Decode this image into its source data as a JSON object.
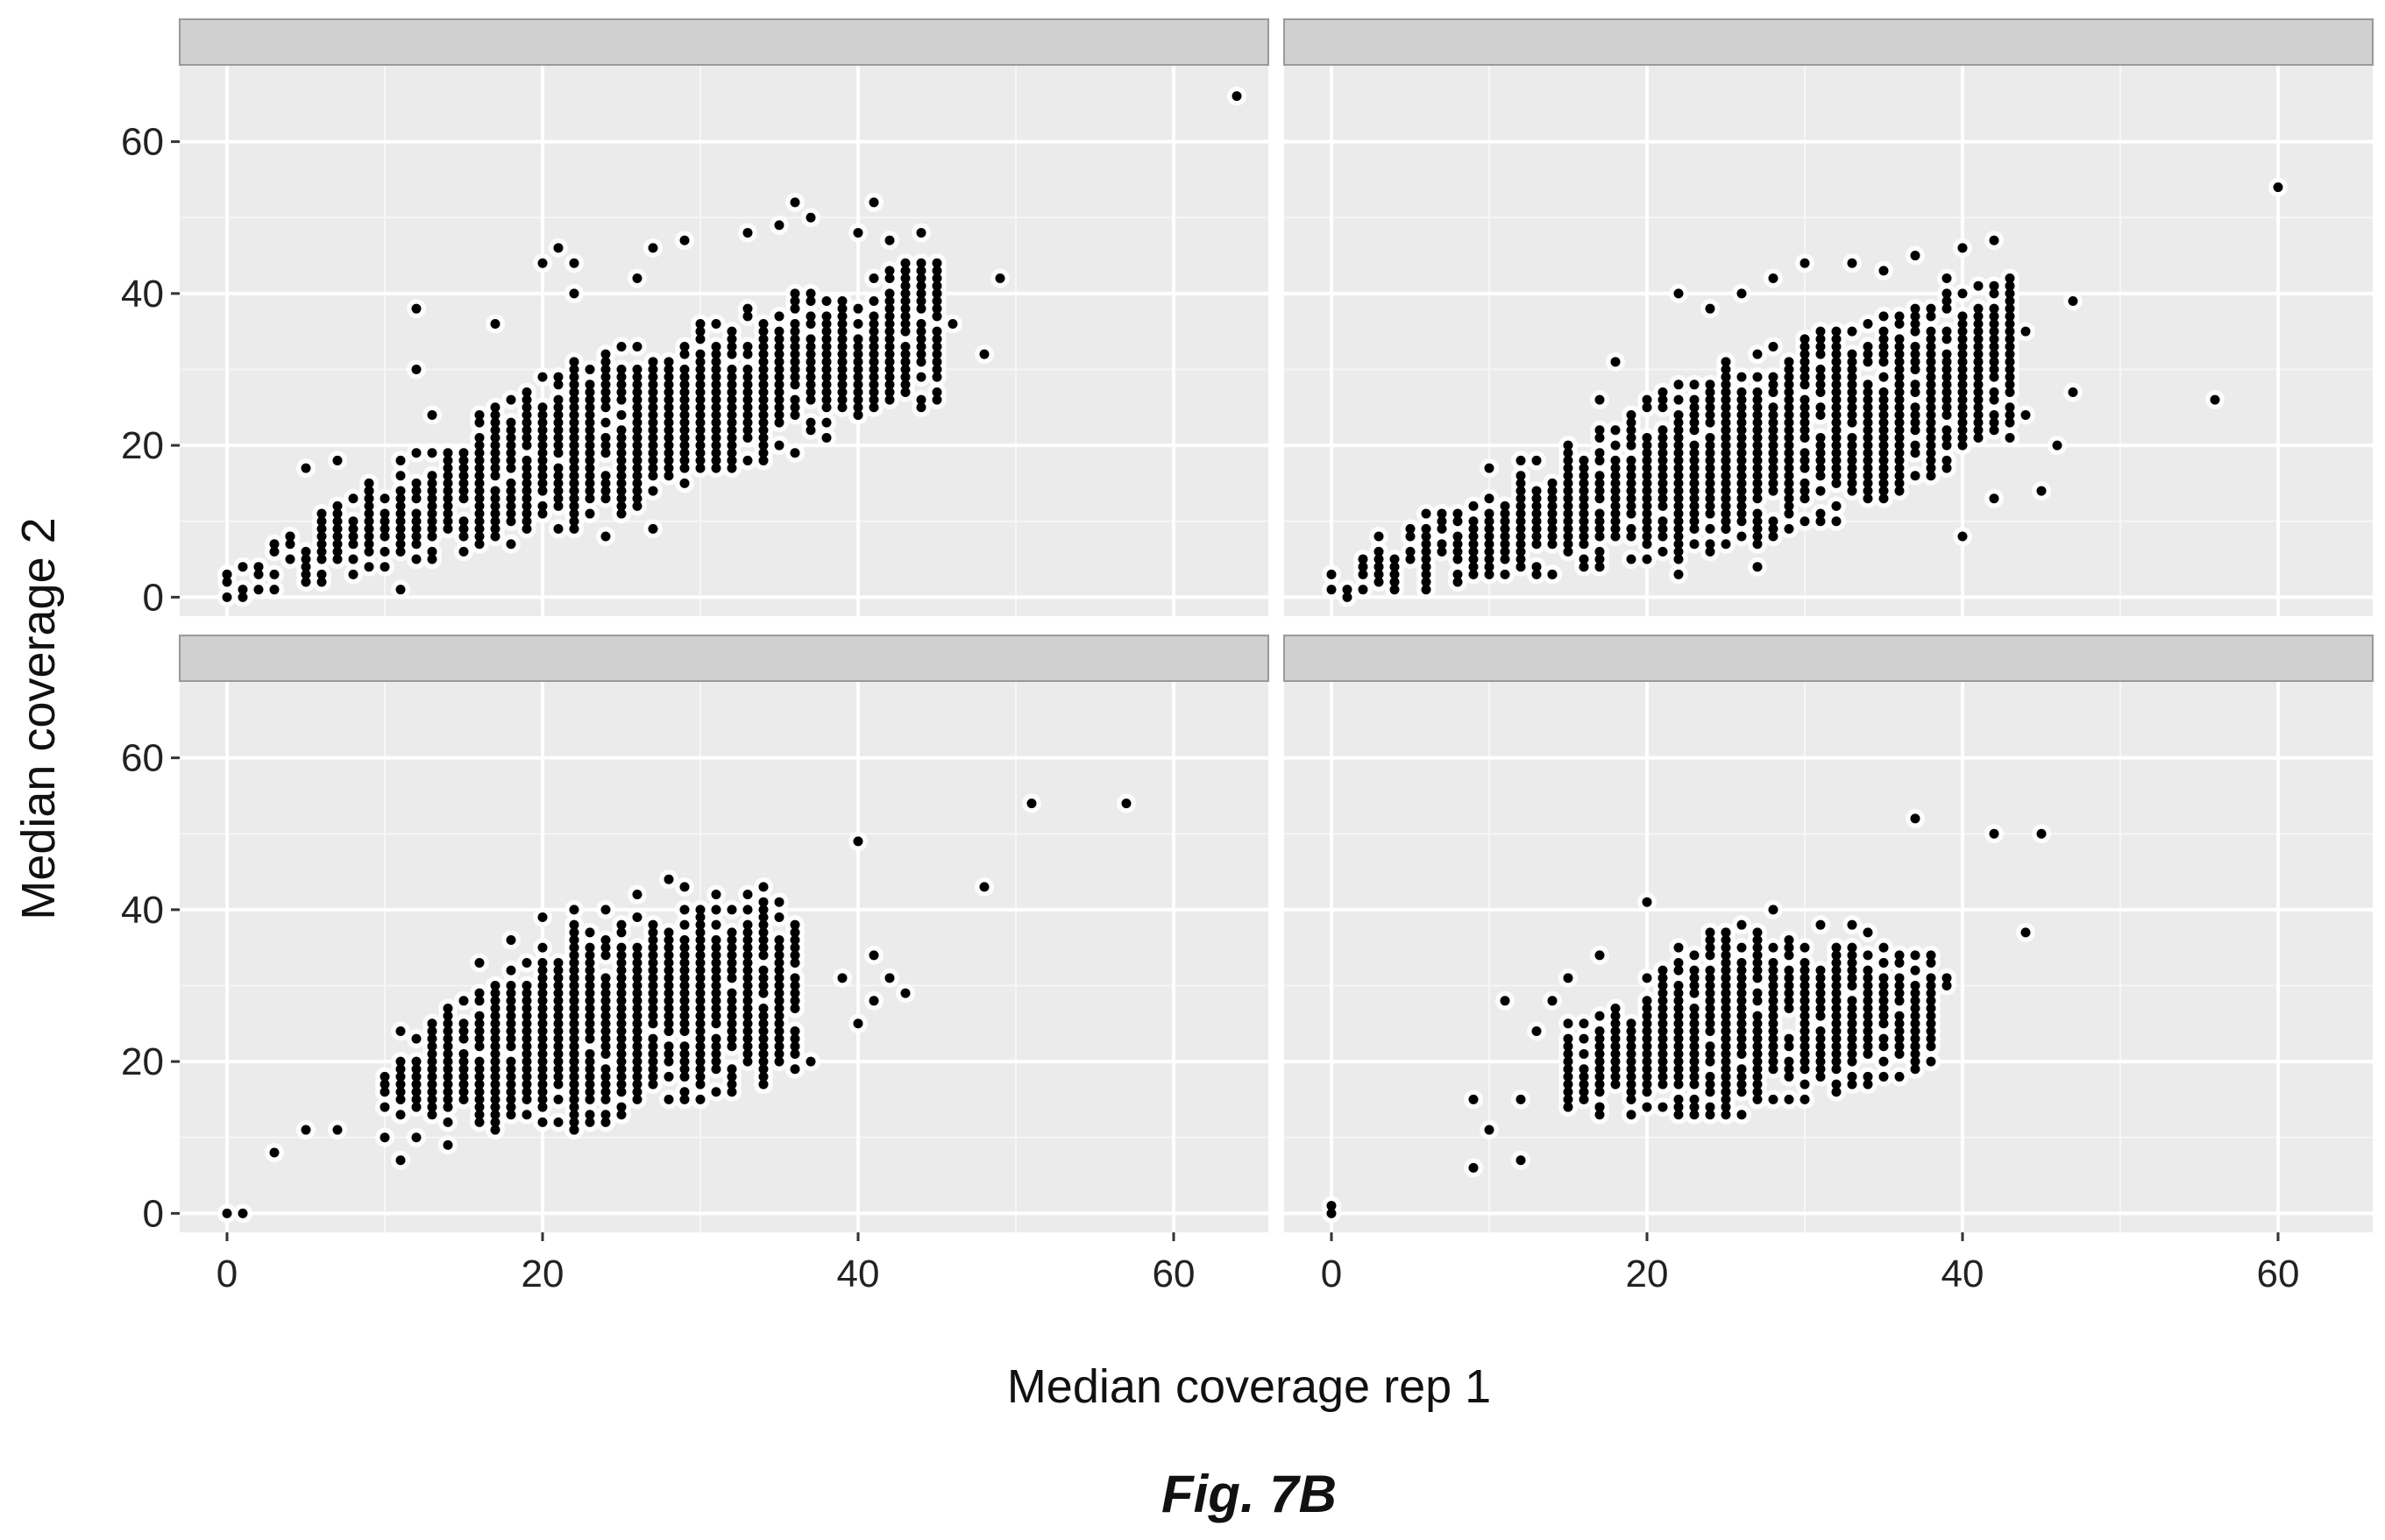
{
  "figure": {
    "caption": "Fig. 7B",
    "xlabel": "Median coverage rep 1",
    "ylabel": "Median coverage 2"
  },
  "chart_data": {
    "type": "scatter",
    "layout": "2x2 facet grid, shared axes",
    "xlabel": "Median coverage rep 1",
    "ylabel": "Median coverage 2",
    "xlim": [
      -3,
      66
    ],
    "ylim": [
      -2.5,
      70
    ],
    "xticks": [
      0,
      20,
      40,
      60
    ],
    "yticks": [
      0,
      20,
      40,
      60
    ],
    "grid": true,
    "panel_background": "#ebebeb",
    "strip_background": "#d0d0d0",
    "point_color": "#000000",
    "panels": [
      {
        "strip_label": "",
        "clusters": [
          {
            "x": [
              0,
              22
            ],
            "lo": [
              0,
              9
            ],
            "hi": [
              4,
              31
            ]
          },
          {
            "x": [
              22,
              45
            ],
            "lo": [
              9,
              26
            ],
            "hi": [
              31,
              45
            ]
          }
        ],
        "points": [
          [
            0,
            3
          ],
          [
            2,
            1
          ],
          [
            4,
            8
          ],
          [
            5,
            17
          ],
          [
            7,
            18
          ],
          [
            9,
            14
          ],
          [
            11,
            1
          ],
          [
            12,
            38
          ],
          [
            12,
            30
          ],
          [
            13,
            24
          ],
          [
            17,
            36
          ],
          [
            20,
            44
          ],
          [
            21,
            46
          ],
          [
            22,
            44
          ],
          [
            22,
            40
          ],
          [
            24,
            8
          ],
          [
            26,
            42
          ],
          [
            27,
            46
          ],
          [
            27,
            9
          ],
          [
            29,
            47
          ],
          [
            32,
            18
          ],
          [
            33,
            48
          ],
          [
            35,
            49
          ],
          [
            36,
            52
          ],
          [
            37,
            50
          ],
          [
            37,
            22
          ],
          [
            40,
            48
          ],
          [
            40,
            24
          ],
          [
            41,
            52
          ],
          [
            42,
            47
          ],
          [
            44,
            48
          ],
          [
            45,
            44
          ],
          [
            45,
            40
          ],
          [
            46,
            36
          ],
          [
            48,
            32
          ],
          [
            49,
            42
          ],
          [
            64,
            66
          ]
        ]
      },
      {
        "strip_label": "",
        "clusters": [
          {
            "x": [
              0,
              25
            ],
            "lo": [
              0,
              6
            ],
            "hi": [
              3,
              31
            ]
          },
          {
            "x": [
              25,
              43
            ],
            "lo": [
              6,
              19
            ],
            "hi": [
              31,
              42
            ]
          }
        ],
        "points": [
          [
            0,
            1
          ],
          [
            3,
            8
          ],
          [
            6,
            11
          ],
          [
            10,
            17
          ],
          [
            12,
            18
          ],
          [
            14,
            3
          ],
          [
            15,
            20
          ],
          [
            17,
            26
          ],
          [
            18,
            31
          ],
          [
            20,
            26
          ],
          [
            22,
            40
          ],
          [
            22,
            3
          ],
          [
            24,
            38
          ],
          [
            26,
            40
          ],
          [
            27,
            4
          ],
          [
            28,
            42
          ],
          [
            30,
            44
          ],
          [
            32,
            10
          ],
          [
            33,
            44
          ],
          [
            35,
            43
          ],
          [
            37,
            45
          ],
          [
            39,
            42
          ],
          [
            40,
            8
          ],
          [
            40,
            46
          ],
          [
            42,
            47
          ],
          [
            42,
            13
          ],
          [
            43,
            42
          ],
          [
            44,
            35
          ],
          [
            44,
            24
          ],
          [
            45,
            14
          ],
          [
            46,
            20
          ],
          [
            47,
            39
          ],
          [
            47,
            27
          ],
          [
            56,
            26
          ],
          [
            60,
            54
          ]
        ]
      },
      {
        "strip_label": "",
        "clusters": [
          {
            "x": [
              10,
              22
            ],
            "lo": [
              12,
              11
            ],
            "hi": [
              21,
              38
            ]
          },
          {
            "x": [
              22,
              36
            ],
            "lo": [
              11,
              18
            ],
            "hi": [
              38,
              41
            ]
          }
        ],
        "points": [
          [
            0,
            0
          ],
          [
            1,
            0
          ],
          [
            3,
            8
          ],
          [
            5,
            11
          ],
          [
            7,
            11
          ],
          [
            10,
            10
          ],
          [
            11,
            7
          ],
          [
            11,
            24
          ],
          [
            12,
            10
          ],
          [
            14,
            9
          ],
          [
            16,
            33
          ],
          [
            18,
            36
          ],
          [
            20,
            39
          ],
          [
            22,
            40
          ],
          [
            24,
            40
          ],
          [
            26,
            42
          ],
          [
            28,
            44
          ],
          [
            29,
            43
          ],
          [
            31,
            42
          ],
          [
            33,
            42
          ],
          [
            34,
            43
          ],
          [
            35,
            28
          ],
          [
            37,
            20
          ],
          [
            39,
            31
          ],
          [
            40,
            25
          ],
          [
            40,
            49
          ],
          [
            41,
            28
          ],
          [
            41,
            34
          ],
          [
            42,
            31
          ],
          [
            43,
            29
          ],
          [
            48,
            43
          ],
          [
            51,
            54
          ],
          [
            57,
            54
          ]
        ]
      },
      {
        "strip_label": "",
        "clusters": [
          {
            "x": [
              15,
              25
            ],
            "lo": [
              13,
              13
            ],
            "hi": [
              25,
              37
            ]
          },
          {
            "x": [
              25,
              38
            ],
            "lo": [
              13,
              19
            ],
            "hi": [
              37,
              34
            ]
          }
        ],
        "points": [
          [
            0,
            0
          ],
          [
            0,
            1
          ],
          [
            9,
            6
          ],
          [
            9,
            15
          ],
          [
            10,
            11
          ],
          [
            11,
            28
          ],
          [
            12,
            7
          ],
          [
            12,
            15
          ],
          [
            13,
            24
          ],
          [
            14,
            28
          ],
          [
            15,
            31
          ],
          [
            17,
            34
          ],
          [
            17,
            14
          ],
          [
            20,
            41
          ],
          [
            22,
            35
          ],
          [
            24,
            37
          ],
          [
            26,
            38
          ],
          [
            28,
            40
          ],
          [
            29,
            36
          ],
          [
            31,
            38
          ],
          [
            33,
            38
          ],
          [
            34,
            37
          ],
          [
            36,
            34
          ],
          [
            37,
            22
          ],
          [
            37,
            52
          ],
          [
            39,
            30
          ],
          [
            39,
            31
          ],
          [
            42,
            50
          ],
          [
            44,
            37
          ],
          [
            45,
            50
          ]
        ]
      }
    ]
  }
}
